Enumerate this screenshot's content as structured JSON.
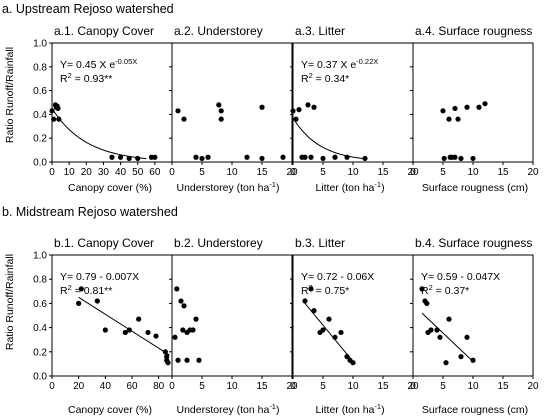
{
  "sections": [
    {
      "title": "a. Upstream Rejoso watershed"
    },
    {
      "title": "b. Midstream Rejoso watershed"
    }
  ],
  "ylabel": "Ratio Runoff/Rainfall",
  "xlabels": {
    "canopy": "Canopy cover (%)",
    "understorey_main": "Understorey (ton ha",
    "litter_main": "Litter (ton ha",
    "sup_minus1": "-1",
    "close_paren": ")",
    "roughness": "Surface rougness (cm)"
  },
  "chart_data": [
    {
      "type": "scatter",
      "title": "a.1. Canopy Cover",
      "xlim": [
        0,
        70
      ],
      "xticks": [
        0,
        10,
        20,
        30,
        40,
        50,
        60
      ],
      "ylim": [
        0,
        1.0
      ],
      "yticks": [
        0.0,
        0.2,
        0.4,
        0.6,
        0.8,
        1.0
      ],
      "points": [
        [
          0,
          0.43
        ],
        [
          1,
          0.36
        ],
        [
          2,
          0.48
        ],
        [
          2.5,
          0.46
        ],
        [
          3,
          0.47
        ],
        [
          3.5,
          0.45
        ],
        [
          4,
          0.36
        ],
        [
          35,
          0.04
        ],
        [
          40,
          0.04
        ],
        [
          45,
          0.03
        ],
        [
          50,
          0.03
        ],
        [
          58,
          0.04
        ],
        [
          60,
          0.04
        ]
      ],
      "fit": {
        "kind": "exp",
        "a": 0.45,
        "b": -0.05,
        "from": 0,
        "to": 55
      },
      "equation": {
        "y": "Y= 0.45 X e",
        "y_sup": "-0.05X",
        "r2_pre": "R",
        "r2_sup": "2",
        "r2_post": " = 0.93**"
      }
    },
    {
      "type": "scatter",
      "title": "a.2. Understorey",
      "xlim": [
        0,
        20
      ],
      "xticks": [
        0,
        5,
        10,
        15,
        20
      ],
      "ylim": [
        0,
        1.0
      ],
      "yticks": [
        0.0,
        0.2,
        0.4,
        0.6,
        0.8,
        1.0
      ],
      "points": [
        [
          1,
          0.43
        ],
        [
          2,
          0.36
        ],
        [
          4,
          0.04
        ],
        [
          5,
          0.03
        ],
        [
          6,
          0.04
        ],
        [
          7.8,
          0.48
        ],
        [
          8.2,
          0.43
        ],
        [
          8.2,
          0.36
        ],
        [
          12.5,
          0.04
        ],
        [
          15,
          0.03
        ],
        [
          15,
          0.46
        ],
        [
          18.5,
          0.04
        ]
      ]
    },
    {
      "type": "scatter",
      "title": "a.3. Litter",
      "xlim": [
        0,
        20
      ],
      "xticks": [
        0,
        5,
        10,
        15,
        20
      ],
      "ylim": [
        0,
        1.0
      ],
      "yticks": [
        0.0,
        0.2,
        0.4,
        0.6,
        0.8,
        1.0
      ],
      "points": [
        [
          0,
          0.43
        ],
        [
          0.5,
          0.36
        ],
        [
          1,
          0.44
        ],
        [
          1.5,
          0.04
        ],
        [
          2,
          0.04
        ],
        [
          2.5,
          0.48
        ],
        [
          3,
          0.04
        ],
        [
          3.5,
          0.46
        ],
        [
          5,
          0.03
        ],
        [
          7,
          0.04
        ],
        [
          9,
          0.04
        ],
        [
          12,
          0.03
        ]
      ],
      "fit": {
        "kind": "exp",
        "a": 0.37,
        "b": -0.22,
        "from": 0,
        "to": 12
      },
      "equation": {
        "y": "Y= 0.37 X e",
        "y_sup": "-0.22X",
        "r2_pre": "R",
        "r2_sup": "2",
        "r2_post": " = 0.34*"
      }
    },
    {
      "type": "scatter",
      "title": "a.4. Surface rougness",
      "xlim": [
        0,
        20
      ],
      "xticks": [
        0,
        5,
        10,
        15,
        20
      ],
      "ylim": [
        0,
        1.0
      ],
      "yticks": [
        0.0,
        0.2,
        0.4,
        0.6,
        0.8,
        1.0
      ],
      "points": [
        [
          5,
          0.43
        ],
        [
          5.2,
          0.03
        ],
        [
          6,
          0.36
        ],
        [
          6.2,
          0.04
        ],
        [
          6.5,
          0.04
        ],
        [
          7,
          0.04
        ],
        [
          7,
          0.45
        ],
        [
          7.5,
          0.36
        ],
        [
          8,
          0.03
        ],
        [
          9,
          0.46
        ],
        [
          10,
          0.03
        ],
        [
          11,
          0.46
        ],
        [
          12,
          0.49
        ]
      ]
    },
    {
      "type": "scatter",
      "title": "b.1. Canopy Cover",
      "xlim": [
        0,
        90
      ],
      "xticks": [
        0,
        20,
        40,
        60,
        80
      ],
      "ylim": [
        0,
        1.0
      ],
      "yticks": [
        0.0,
        0.2,
        0.4,
        0.6,
        0.8,
        1.0
      ],
      "points": [
        [
          20,
          0.6
        ],
        [
          22,
          0.72
        ],
        [
          34,
          0.62
        ],
        [
          40,
          0.38
        ],
        [
          55,
          0.36
        ],
        [
          58,
          0.38
        ],
        [
          65,
          0.47
        ],
        [
          72,
          0.36
        ],
        [
          78,
          0.33
        ],
        [
          85,
          0.2
        ],
        [
          86,
          0.16
        ],
        [
          86,
          0.13
        ],
        [
          87,
          0.11
        ]
      ],
      "fit": {
        "kind": "linear",
        "a": 0.79,
        "b": -0.007,
        "from": 20,
        "to": 88
      },
      "equation": {
        "y": "Y= 0.79 - 0.007X",
        "r2_pre": "R",
        "r2_sup": "2",
        "r2_post": " = 0.81**"
      }
    },
    {
      "type": "scatter",
      "title": "b.2. Understorey",
      "xlim": [
        0,
        20
      ],
      "xticks": [
        0,
        5,
        10,
        15,
        20
      ],
      "ylim": [
        0,
        1.0
      ],
      "yticks": [
        0.0,
        0.2,
        0.4,
        0.6,
        0.8,
        1.0
      ],
      "points": [
        [
          0.5,
          0.32
        ],
        [
          0.8,
          0.72
        ],
        [
          1,
          0.13
        ],
        [
          1.5,
          0.62
        ],
        [
          1.8,
          0.38
        ],
        [
          2,
          0.58
        ],
        [
          2.5,
          0.36
        ],
        [
          2.5,
          0.13
        ],
        [
          3,
          0.38
        ],
        [
          3.5,
          0.38
        ],
        [
          4,
          0.47
        ],
        [
          4.5,
          0.13
        ]
      ]
    },
    {
      "type": "scatter",
      "title": "b.3. Litter",
      "xlim": [
        0,
        20
      ],
      "xticks": [
        0,
        5,
        10,
        15,
        20
      ],
      "ylim": [
        0,
        1.0
      ],
      "yticks": [
        0.0,
        0.2,
        0.4,
        0.6,
        0.8,
        1.0
      ],
      "points": [
        [
          2,
          0.62
        ],
        [
          3,
          0.72
        ],
        [
          3.5,
          0.54
        ],
        [
          4.5,
          0.36
        ],
        [
          5,
          0.38
        ],
        [
          6,
          0.47
        ],
        [
          7,
          0.32
        ],
        [
          8,
          0.36
        ],
        [
          9,
          0.16
        ],
        [
          9.5,
          0.13
        ],
        [
          10,
          0.11
        ]
      ],
      "fit": {
        "kind": "linear",
        "a": 0.72,
        "b": -0.06,
        "from": 2,
        "to": 10
      },
      "equation": {
        "y": "Y= 0.72 - 0.06X",
        "r2_pre": "R",
        "r2_sup": "2",
        "r2_post": " = 0.75*"
      }
    },
    {
      "type": "scatter",
      "title": "b.4. Surface rougness",
      "xlim": [
        0,
        20
      ],
      "xticks": [
        0,
        5,
        10,
        15,
        20
      ],
      "ylim": [
        0,
        1.0
      ],
      "yticks": [
        0.0,
        0.2,
        0.4,
        0.6,
        0.8,
        1.0
      ],
      "points": [
        [
          1.5,
          0.72
        ],
        [
          2,
          0.62
        ],
        [
          2.3,
          0.6
        ],
        [
          2.5,
          0.36
        ],
        [
          3,
          0.38
        ],
        [
          4,
          0.38
        ],
        [
          4.5,
          0.32
        ],
        [
          5.5,
          0.11
        ],
        [
          6,
          0.47
        ],
        [
          8,
          0.16
        ],
        [
          9,
          0.32
        ],
        [
          10,
          0.13
        ]
      ],
      "fit": {
        "kind": "linear",
        "a": 0.59,
        "b": -0.047,
        "from": 1.5,
        "to": 10
      },
      "equation": {
        "y": "Y= 0.59 - 0.047X",
        "r2_pre": "R",
        "r2_sup": "2",
        "r2_post": " = 0.37*"
      }
    }
  ]
}
